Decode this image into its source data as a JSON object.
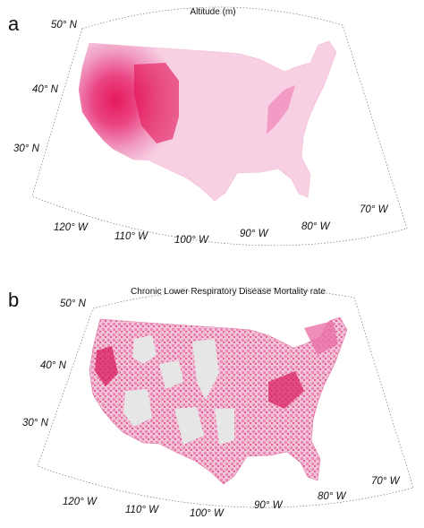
{
  "panel_a": {
    "letter": "a",
    "title": "Altitude (m)",
    "lat_labels": [
      "50° N",
      "40° N",
      "30° N"
    ],
    "lon_labels": [
      "120° W",
      "110° W",
      "100° W",
      "90° W",
      "80° W",
      "70° W"
    ],
    "colors": {
      "low": "#f7d0e3",
      "mid": "#ee7ab0",
      "high": "#e31055"
    }
  },
  "panel_b": {
    "letter": "b",
    "title": "Chronic Lower Respiratory Disease Mortality rate",
    "lat_labels": [
      "50° N",
      "40° N",
      "30° N"
    ],
    "lon_labels": [
      "120° W",
      "110° W",
      "100° W",
      "90° W",
      "80° W",
      "70° W"
    ],
    "colors": {
      "low": "#f2c2d8",
      "mid": "#e871a6",
      "high": "#d81b5f",
      "no_data": "#e6e6e6"
    }
  }
}
